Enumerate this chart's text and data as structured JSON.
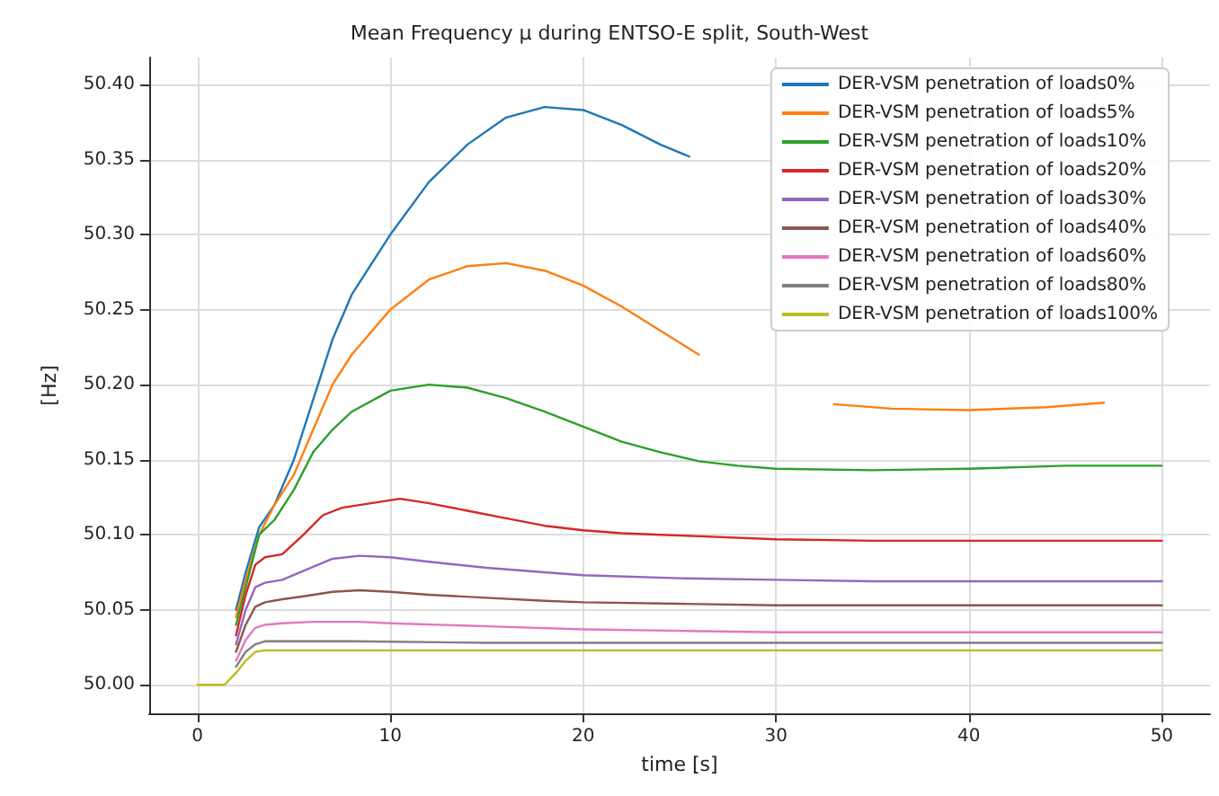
{
  "chart_data": {
    "type": "line",
    "title": "Mean Frequency μ during ENTSO-E split, South-West",
    "xlabel": "time [s]",
    "ylabel": "[Hz]",
    "xlim": [
      -2.5,
      52.5
    ],
    "xticks": [
      0,
      10,
      20,
      30,
      40,
      50
    ],
    "ylim": [
      49.981,
      50.418
    ],
    "yticks": [
      {
        "value": 50.0,
        "label": "50.00"
      },
      {
        "value": 50.05,
        "label": "50.05"
      },
      {
        "value": 50.1,
        "label": "50.10"
      },
      {
        "value": 50.15,
        "label": "50.15"
      },
      {
        "value": 50.2,
        "label": "50.20"
      },
      {
        "value": 50.25,
        "label": "50.25"
      },
      {
        "value": 50.3,
        "label": "50.30"
      },
      {
        "value": 50.35,
        "label": "50.35"
      },
      {
        "value": 50.4,
        "label": "50.40"
      }
    ],
    "grid": true,
    "legend": "top right",
    "marker": "none",
    "line_style": "solid",
    "series": [
      {
        "name": "DER-VSM penetration of loads0%",
        "color": "#1f77b4",
        "x": [
          2,
          2.5,
          3.2,
          4,
          5,
          6,
          7,
          8,
          10,
          12,
          14,
          16,
          18,
          20,
          22,
          24,
          25.5
        ],
        "values": [
          50.05,
          50.075,
          50.105,
          50.12,
          50.15,
          50.19,
          50.23,
          50.26,
          50.3,
          50.335,
          50.36,
          50.378,
          50.385,
          50.383,
          50.373,
          50.36,
          50.352
        ]
      },
      {
        "name": "DER-VSM penetration of loads5%",
        "color": "#ff7f0e",
        "x": [
          2,
          2.5,
          3.2,
          4,
          5,
          6,
          7,
          8,
          10,
          12,
          14,
          16,
          18,
          20,
          22,
          24,
          26,
          28,
          30,
          33,
          36,
          40,
          44,
          47
        ],
        "values": [
          50.045,
          50.07,
          50.1,
          50.12,
          50.14,
          50.17,
          50.2,
          50.22,
          50.25,
          50.27,
          50.279,
          50.281,
          50.276,
          50.266,
          50.252,
          50.236,
          50.22,
          null,
          null,
          50.187,
          50.184,
          50.183,
          50.185,
          50.188
        ]
      },
      {
        "name": "DER-VSM penetration of loads10%",
        "color": "#2ca02c",
        "x": [
          2,
          2.5,
          3.2,
          4,
          5,
          6,
          7,
          8,
          10,
          12,
          14,
          16,
          18,
          20,
          22,
          24,
          26,
          28,
          30,
          35,
          40,
          45,
          50
        ],
        "values": [
          50.04,
          50.065,
          50.1,
          50.11,
          50.13,
          50.155,
          50.17,
          50.182,
          50.196,
          50.2,
          50.198,
          50.191,
          50.182,
          50.172,
          50.162,
          50.155,
          50.149,
          50.146,
          50.144,
          50.143,
          50.144,
          50.146,
          50.146
        ]
      },
      {
        "name": "DER-VSM penetration of loads20%",
        "color": "#d62728",
        "x": [
          2,
          2.5,
          3,
          3.5,
          4.4,
          5.5,
          6.5,
          7.5,
          9,
          10.5,
          12,
          14,
          16,
          18,
          20,
          22,
          24,
          26,
          30,
          35,
          40,
          45,
          50
        ],
        "values": [
          50.033,
          50.06,
          50.08,
          50.085,
          50.087,
          50.1,
          50.113,
          50.118,
          50.121,
          50.124,
          50.121,
          50.116,
          50.111,
          50.106,
          50.103,
          50.101,
          50.1,
          50.099,
          50.097,
          50.096,
          50.096,
          50.096,
          50.096
        ]
      },
      {
        "name": "DER-VSM penetration of loads30%",
        "color": "#9467bd",
        "x": [
          2,
          2.5,
          3,
          3.5,
          4.4,
          5.5,
          7,
          8.4,
          10,
          12,
          15,
          18,
          20,
          25,
          30,
          35,
          40,
          45,
          50
        ],
        "values": [
          50.027,
          50.05,
          50.065,
          50.068,
          50.07,
          50.076,
          50.084,
          50.086,
          50.085,
          50.082,
          50.078,
          50.075,
          50.073,
          50.071,
          50.07,
          50.069,
          50.069,
          50.069,
          50.069
        ]
      },
      {
        "name": "DER-VSM penetration of loads40%",
        "color": "#8c564b",
        "x": [
          2,
          2.5,
          3,
          3.5,
          4.4,
          5.5,
          7,
          8.4,
          10,
          12,
          15,
          18,
          20,
          25,
          30,
          35,
          40,
          45,
          50
        ],
        "values": [
          50.022,
          50.04,
          50.052,
          50.055,
          50.057,
          50.059,
          50.062,
          50.063,
          50.062,
          50.06,
          50.058,
          50.056,
          50.055,
          50.054,
          50.053,
          50.053,
          50.053,
          50.053,
          50.053
        ]
      },
      {
        "name": "DER-VSM penetration of loads60%",
        "color": "#e377c2",
        "x": [
          2,
          2.5,
          3,
          3.5,
          4.4,
          6,
          8.4,
          10,
          15,
          20,
          25,
          30,
          40,
          50
        ],
        "values": [
          50.016,
          50.03,
          50.038,
          50.04,
          50.041,
          50.042,
          50.042,
          50.041,
          50.039,
          50.037,
          50.036,
          50.035,
          50.035,
          50.035
        ]
      },
      {
        "name": "DER-VSM penetration of loads80%",
        "color": "#7f7f7f",
        "x": [
          2,
          2.5,
          3,
          3.5,
          4.4,
          8,
          15,
          25,
          35,
          50
        ],
        "values": [
          50.012,
          50.022,
          50.027,
          50.029,
          50.029,
          50.029,
          50.028,
          50.028,
          50.028,
          50.028
        ]
      },
      {
        "name": "DER-VSM penetration of loads100%",
        "color": "#bcbd22",
        "x": [
          0,
          1.4,
          2,
          2.5,
          3,
          3.5,
          4.4,
          8,
          15,
          25,
          35,
          50
        ],
        "values": [
          50.0,
          50.0,
          50.008,
          50.016,
          50.022,
          50.023,
          50.023,
          50.023,
          50.023,
          50.023,
          50.023,
          50.023
        ]
      }
    ]
  }
}
